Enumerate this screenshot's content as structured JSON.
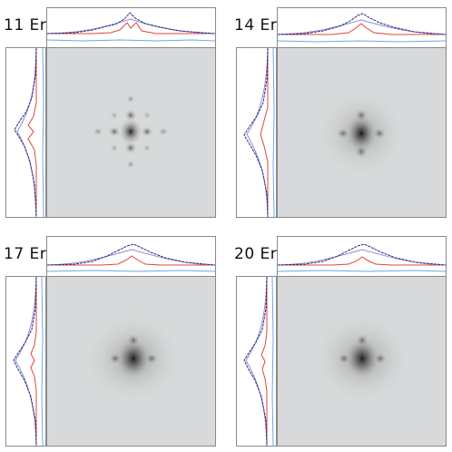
{
  "panels": [
    {
      "label": "11 Er"
    },
    {
      "label": "14 Er"
    },
    {
      "label": "17 Er"
    },
    {
      "label": "20 Er"
    }
  ],
  "colors": {
    "dark_profile": "#2a2a7a",
    "fit_profile": "#8c8cd8",
    "red_profile": "#e0443a",
    "residual_profile": "#6aa9e8",
    "image_background": "#d7d9da"
  }
}
